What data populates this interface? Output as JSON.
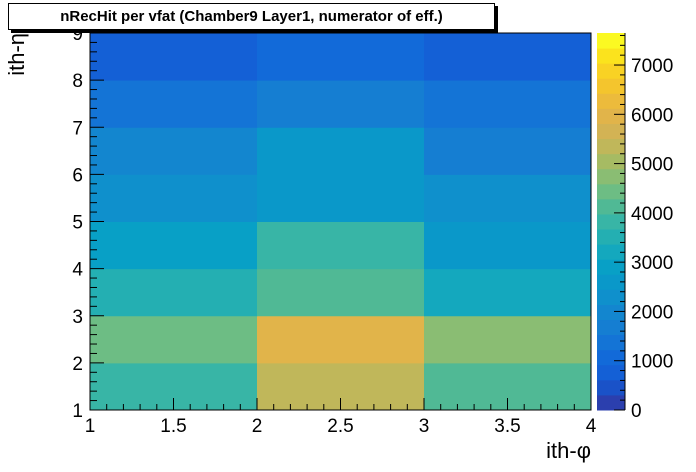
{
  "chart_data": {
    "type": "heatmap",
    "title": "nRecHit per vfat (Chamber9 Layer1, numerator of eff.)",
    "xlabel": "ith-φ",
    "ylabel": "ith-η",
    "x_edges": [
      1,
      2,
      3,
      4
    ],
    "y_edges": [
      1,
      2,
      3,
      4,
      5,
      6,
      7,
      8,
      9
    ],
    "xlim": [
      1,
      4
    ],
    "ylim": [
      1,
      9
    ],
    "x_ticks": [
      "1",
      "1.5",
      "2",
      "2.5",
      "3",
      "3.5",
      "4"
    ],
    "y_ticks": [
      "1",
      "2",
      "3",
      "4",
      "5",
      "6",
      "7",
      "8",
      "9"
    ],
    "z_range": [
      0,
      7650
    ],
    "z_ticks": [
      "0",
      "1000",
      "2000",
      "3000",
      "4000",
      "5000",
      "6000",
      "7000"
    ],
    "palette": [
      "#2b3fae",
      "#1a52c8",
      "#1460d6",
      "#126ad9",
      "#1474d6",
      "#157ed2",
      "#1386cf",
      "#0f90cc",
      "#0a98c9",
      "#08a0c6",
      "#14a8be",
      "#24afb2",
      "#38b5a6",
      "#50b995",
      "#6dbd84",
      "#8abd73",
      "#a6bb63",
      "#c0b75a",
      "#d3b354",
      "#e1b44a",
      "#ecbb3c",
      "#f4c52d",
      "#f9d224",
      "#fbe31d",
      "#fbf922"
    ],
    "values": [
      [
        3700,
        5350,
        4100
      ],
      [
        4400,
        5850,
        4850
      ],
      [
        3400,
        4200,
        3250
      ],
      [
        2850,
        3750,
        2750
      ],
      [
        2200,
        2650,
        2150
      ],
      [
        1850,
        2450,
        1750
      ],
      [
        1500,
        1700,
        1500
      ],
      [
        750,
        1200,
        700
      ]
    ]
  }
}
